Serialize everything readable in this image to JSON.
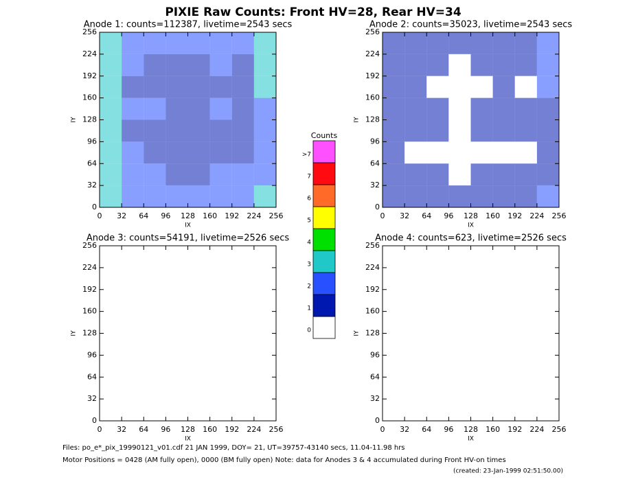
{
  "title": "PIXIE Raw Counts:  Front HV=28, Rear HV=34",
  "footer": [
    "Files: po_e*_pix_19990121_v01.cdf    21 JAN 1999, DOY= 21, UT=39757-43140 secs, 11.04-11.98 hrs",
    "Motor Positions = 0428 (AM fully open), 0000 (BM fully open)    Note: data for Anodes 3 & 4 accumulated during Front HV-on times",
    "(created: 23-Jan-1999 02:51:50.00)"
  ],
  "colorbar": {
    "title": "Counts",
    "labels": [
      "0",
      "1",
      "2",
      "3",
      "4",
      "5",
      "6",
      "7",
      ">7"
    ],
    "colors": [
      "#ffffff",
      "#0018b0",
      "#2850ff",
      "#20c8c8",
      "#00e000",
      "#ffff00",
      "#ff6a28",
      "#ff0a10",
      "#ff50ff"
    ]
  },
  "chart_data": [
    {
      "type": "heatmap",
      "title": "Anode 1: counts=112387, livetime=2543 secs",
      "xlabel": "IX",
      "ylabel": "IY",
      "xlim": [
        0,
        256
      ],
      "ylim": [
        0,
        256
      ],
      "xticks": [
        0,
        32,
        64,
        96,
        128,
        160,
        192,
        224,
        256
      ],
      "yticks": [
        0,
        32,
        64,
        96,
        128,
        160,
        192,
        224,
        256
      ],
      "z": [
        [
          3,
          2,
          2,
          2,
          2,
          2,
          2,
          3
        ],
        [
          3,
          2,
          1,
          1,
          1,
          2,
          1,
          3
        ],
        [
          3,
          1,
          1,
          1,
          1,
          1,
          1,
          3
        ],
        [
          3,
          2,
          2,
          1,
          1,
          2,
          1,
          2
        ],
        [
          3,
          1,
          1,
          1,
          1,
          1,
          1,
          2
        ],
        [
          3,
          2,
          1,
          1,
          1,
          1,
          1,
          2
        ],
        [
          3,
          2,
          2,
          1,
          1,
          2,
          2,
          2
        ],
        [
          3,
          2,
          2,
          2,
          2,
          2,
          2,
          3
        ]
      ]
    },
    {
      "type": "heatmap",
      "title": "Anode 2: counts=35023, livetime=2543 secs",
      "xlabel": "IX",
      "ylabel": "IY",
      "xlim": [
        0,
        256
      ],
      "ylim": [
        0,
        256
      ],
      "xticks": [
        0,
        32,
        64,
        96,
        128,
        160,
        192,
        224,
        256
      ],
      "yticks": [
        0,
        32,
        64,
        96,
        128,
        160,
        192,
        224,
        256
      ],
      "z": [
        [
          1,
          1,
          1,
          1,
          1,
          1,
          1,
          2
        ],
        [
          1,
          1,
          1,
          0,
          1,
          1,
          1,
          2
        ],
        [
          1,
          1,
          0,
          0,
          0,
          1,
          0,
          2
        ],
        [
          1,
          1,
          1,
          0,
          1,
          1,
          1,
          1
        ],
        [
          1,
          1,
          1,
          0,
          1,
          1,
          1,
          1
        ],
        [
          1,
          0,
          0,
          0,
          0,
          0,
          0,
          1
        ],
        [
          1,
          1,
          1,
          0,
          1,
          1,
          1,
          1
        ],
        [
          1,
          1,
          1,
          1,
          1,
          1,
          1,
          2
        ]
      ]
    },
    {
      "type": "heatmap",
      "title": "Anode 3: counts=54191, livetime=2526 secs",
      "xlabel": "IX",
      "ylabel": "IY",
      "xlim": [
        0,
        256
      ],
      "ylim": [
        0,
        256
      ],
      "xticks": [
        0,
        32,
        64,
        96,
        128,
        160,
        192,
        224,
        256
      ],
      "yticks": [
        0,
        32,
        64,
        96,
        128,
        160,
        192,
        224,
        256
      ],
      "z": [
        [
          0,
          0,
          0,
          0,
          0,
          0,
          0,
          0
        ],
        [
          0,
          0,
          0,
          0,
          0,
          0,
          0,
          0
        ],
        [
          0,
          0,
          0,
          0,
          0,
          0,
          0,
          0
        ],
        [
          0,
          0,
          0,
          0,
          0,
          0,
          0,
          0
        ],
        [
          0,
          0,
          0,
          0,
          0,
          0,
          0,
          0
        ],
        [
          0,
          0,
          0,
          0,
          0,
          0,
          0,
          0
        ],
        [
          0,
          0,
          0,
          0,
          0,
          0,
          0,
          0
        ],
        [
          0,
          0,
          0,
          0,
          0,
          0,
          0,
          0
        ]
      ]
    },
    {
      "type": "heatmap",
      "title": "Anode 4: counts=623, livetime=2526 secs",
      "xlabel": "IX",
      "ylabel": "IY",
      "xlim": [
        0,
        256
      ],
      "ylim": [
        0,
        256
      ],
      "xticks": [
        0,
        32,
        64,
        96,
        128,
        160,
        192,
        224,
        256
      ],
      "yticks": [
        0,
        32,
        64,
        96,
        128,
        160,
        192,
        224,
        256
      ],
      "z": [
        [
          0,
          0,
          0,
          0,
          0,
          0,
          0,
          0
        ],
        [
          0,
          0,
          0,
          0,
          0,
          0,
          0,
          0
        ],
        [
          0,
          0,
          0,
          0,
          0,
          0,
          0,
          0
        ],
        [
          0,
          0,
          0,
          0,
          0,
          0,
          0,
          0
        ],
        [
          0,
          0,
          0,
          0,
          0,
          0,
          0,
          0
        ],
        [
          0,
          0,
          0,
          0,
          0,
          0,
          0,
          0
        ],
        [
          0,
          0,
          0,
          0,
          0,
          0,
          0,
          0
        ],
        [
          0,
          0,
          0,
          0,
          0,
          0,
          0,
          0
        ]
      ]
    }
  ]
}
